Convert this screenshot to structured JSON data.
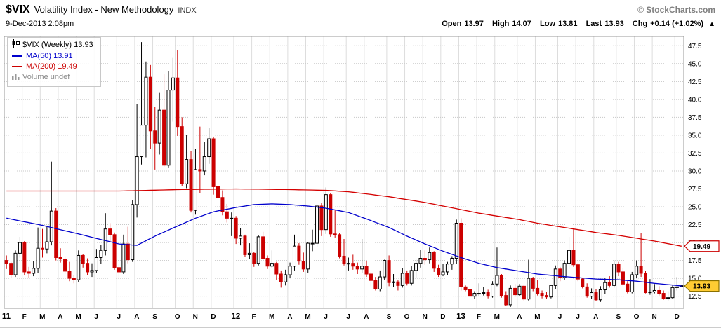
{
  "header": {
    "symbol": "$VIX",
    "name": "Volatility Index - New Methodology",
    "exchange": "INDX",
    "credit": "© StockCharts.com",
    "datetime": "9-Dec-2013 2:08pm",
    "quote": {
      "open_label": "Open",
      "open": "13.97",
      "high_label": "High",
      "high": "14.07",
      "low_label": "Low",
      "low": "13.81",
      "last_label": "Last",
      "last": "13.93",
      "chg_label": "Chg",
      "chg": "+0.14 (+1.02%)",
      "direction_icon": "▲"
    }
  },
  "legend": {
    "series": "$VIX (Weekly) 13.93",
    "ma50": "MA(50) 13.91",
    "ma200": "MA(200) 19.49",
    "volume": "Volume undef"
  },
  "chart_data": {
    "type": "candlestick",
    "title": "$VIX Volatility Index - New Methodology INDX",
    "timeframe": "Weekly",
    "x_range": "Jan 2011 - Dec 2013",
    "ylim": [
      10.8,
      48.8
    ],
    "grid": true,
    "legend_position": "top-left",
    "colors": {
      "up": "#000000",
      "down": "#cc0000",
      "ma50": "#0000cc",
      "ma200": "#d40000",
      "grid_h": "#c8c8c8",
      "grid_v": "#dddddd",
      "border": "#999999",
      "axis_text": "#000000",
      "last_marker": "#ffcc33"
    },
    "y_ticks": [
      {
        "v": 47.5,
        "label": "47.5"
      },
      {
        "v": 45.0,
        "label": "45.0"
      },
      {
        "v": 42.5,
        "label": "42.5"
      },
      {
        "v": 40.0,
        "label": "40.0"
      },
      {
        "v": 37.5,
        "label": "37.5"
      },
      {
        "v": 35.0,
        "label": "35.0"
      },
      {
        "v": 32.5,
        "label": "32.5"
      },
      {
        "v": 30.0,
        "label": "30.0"
      },
      {
        "v": 27.5,
        "label": "27.5"
      },
      {
        "v": 25.0,
        "label": "25.0"
      },
      {
        "v": 22.5,
        "label": "22.5"
      },
      {
        "v": 20.0,
        "label": "20.0"
      },
      {
        "v": 17.5,
        "label": "17.5"
      },
      {
        "v": 15.0,
        "label": "15.0"
      },
      {
        "v": 12.5,
        "label": "12.5"
      }
    ],
    "x_ticks": [
      {
        "pos": 0,
        "label": "11",
        "year": true
      },
      {
        "pos": 4,
        "label": "F"
      },
      {
        "pos": 8,
        "label": "M"
      },
      {
        "pos": 12,
        "label": "A"
      },
      {
        "pos": 16,
        "label": "M"
      },
      {
        "pos": 20,
        "label": "J"
      },
      {
        "pos": 25,
        "label": "J"
      },
      {
        "pos": 29,
        "label": "A"
      },
      {
        "pos": 33,
        "label": "S"
      },
      {
        "pos": 38,
        "label": "O"
      },
      {
        "pos": 42,
        "label": "N"
      },
      {
        "pos": 46,
        "label": "D"
      },
      {
        "pos": 51,
        "label": "12",
        "year": true
      },
      {
        "pos": 55,
        "label": "F"
      },
      {
        "pos": 59,
        "label": "M"
      },
      {
        "pos": 63,
        "label": "A"
      },
      {
        "pos": 67,
        "label": "M"
      },
      {
        "pos": 71,
        "label": "J"
      },
      {
        "pos": 76,
        "label": "J"
      },
      {
        "pos": 80,
        "label": "A"
      },
      {
        "pos": 85,
        "label": "S"
      },
      {
        "pos": 89,
        "label": "O"
      },
      {
        "pos": 93,
        "label": "N"
      },
      {
        "pos": 97,
        "label": "D"
      },
      {
        "pos": 101,
        "label": "13",
        "year": true
      },
      {
        "pos": 105,
        "label": "F"
      },
      {
        "pos": 109,
        "label": "M"
      },
      {
        "pos": 114,
        "label": "A"
      },
      {
        "pos": 118,
        "label": "M"
      },
      {
        "pos": 123,
        "label": "J"
      },
      {
        "pos": 127,
        "label": "J"
      },
      {
        "pos": 131,
        "label": "A"
      },
      {
        "pos": 136,
        "label": "S"
      },
      {
        "pos": 140,
        "label": "O"
      },
      {
        "pos": 144,
        "label": "N"
      },
      {
        "pos": 149,
        "label": "D"
      }
    ],
    "candles_ohlc": [
      [
        17.5,
        18.2,
        16.3,
        17.1
      ],
      [
        17.1,
        17.3,
        15.0,
        15.5
      ],
      [
        15.5,
        18.9,
        15.2,
        18.5
      ],
      [
        18.5,
        20.8,
        17.9,
        20.0
      ],
      [
        20.0,
        20.2,
        15.5,
        15.9
      ],
      [
        15.9,
        16.6,
        15.1,
        15.7
      ],
      [
        15.7,
        17.4,
        15.3,
        16.4
      ],
      [
        16.4,
        22.1,
        15.7,
        19.2
      ],
      [
        19.2,
        21.9,
        17.9,
        19.1
      ],
      [
        19.1,
        22.2,
        18.5,
        20.1
      ],
      [
        20.1,
        31.3,
        19.6,
        24.4
      ],
      [
        24.4,
        24.8,
        17.5,
        17.9
      ],
      [
        17.9,
        19.2,
        17.2,
        17.7
      ],
      [
        17.7,
        18.1,
        15.6,
        16.0
      ],
      [
        16.0,
        17.3,
        14.6,
        15.0
      ],
      [
        15.0,
        15.4,
        14.3,
        14.8
      ],
      [
        14.8,
        18.9,
        14.5,
        18.2
      ],
      [
        18.2,
        18.4,
        16.5,
        17.1
      ],
      [
        17.1,
        17.8,
        15.5,
        15.9
      ],
      [
        15.9,
        17.1,
        15.2,
        16.1
      ],
      [
        16.1,
        19.1,
        15.8,
        17.9
      ],
      [
        17.9,
        19.7,
        17.0,
        18.9
      ],
      [
        18.9,
        24.1,
        18.2,
        21.9
      ],
      [
        21.9,
        22.7,
        20.1,
        21.1
      ],
      [
        21.1,
        21.4,
        16.2,
        16.5
      ],
      [
        16.5,
        17.0,
        15.1,
        15.9
      ],
      [
        15.9,
        21.1,
        15.6,
        19.8
      ],
      [
        19.8,
        22.2,
        17.1,
        17.6
      ],
      [
        17.6,
        25.9,
        17.3,
        25.3
      ],
      [
        25.3,
        39.3,
        23.5,
        32.0
      ],
      [
        32.0,
        48.0,
        30.9,
        36.4
      ],
      [
        36.4,
        45.3,
        31.9,
        43.1
      ],
      [
        43.1,
        44.8,
        33.1,
        35.6
      ],
      [
        35.6,
        39.0,
        30.2,
        33.9
      ],
      [
        33.9,
        41.0,
        32.3,
        38.5
      ],
      [
        38.5,
        43.5,
        30.6,
        30.8
      ],
      [
        30.8,
        44.0,
        30.5,
        41.3
      ],
      [
        41.3,
        45.8,
        36.9,
        43.0
      ],
      [
        43.0,
        46.9,
        34.9,
        36.2
      ],
      [
        36.2,
        37.5,
        27.9,
        28.2
      ],
      [
        28.2,
        35.0,
        27.6,
        31.6
      ],
      [
        31.6,
        32.8,
        24.2,
        24.5
      ],
      [
        24.5,
        33.1,
        23.9,
        30.2
      ],
      [
        30.2,
        36.2,
        26.9,
        30.0
      ],
      [
        30.0,
        34.1,
        29.4,
        32.0
      ],
      [
        32.0,
        36.0,
        31.0,
        34.5
      ],
      [
        34.5,
        34.8,
        26.7,
        27.8
      ],
      [
        27.8,
        29.1,
        25.4,
        26.3
      ],
      [
        26.3,
        27.3,
        23.8,
        24.3
      ],
      [
        24.3,
        25.4,
        22.8,
        23.4
      ],
      [
        23.4,
        24.2,
        20.9,
        23.4
      ],
      [
        23.4,
        23.7,
        19.8,
        20.6
      ],
      [
        20.6,
        22.0,
        19.6,
        20.9
      ],
      [
        20.9,
        21.1,
        18.0,
        18.3
      ],
      [
        18.3,
        19.9,
        17.7,
        18.5
      ],
      [
        18.5,
        18.7,
        16.6,
        17.1
      ],
      [
        17.1,
        21.0,
        16.8,
        20.8
      ],
      [
        20.8,
        21.5,
        17.6,
        17.8
      ],
      [
        17.8,
        18.2,
        16.3,
        16.7
      ],
      [
        16.7,
        18.9,
        16.4,
        17.1
      ],
      [
        17.1,
        17.3,
        14.8,
        15.6
      ],
      [
        15.6,
        16.1,
        13.7,
        14.5
      ],
      [
        14.5,
        16.2,
        14.0,
        15.5
      ],
      [
        15.5,
        17.2,
        15.0,
        16.7
      ],
      [
        16.7,
        21.1,
        16.1,
        19.5
      ],
      [
        19.5,
        19.9,
        16.9,
        17.4
      ],
      [
        17.4,
        18.6,
        15.9,
        16.3
      ],
      [
        16.3,
        20.1,
        15.8,
        19.9
      ],
      [
        19.9,
        21.8,
        18.8,
        19.9
      ],
      [
        19.9,
        25.2,
        19.3,
        25.1
      ],
      [
        25.1,
        25.5,
        20.9,
        21.8
      ],
      [
        21.8,
        27.7,
        21.2,
        26.7
      ],
      [
        26.7,
        26.9,
        20.8,
        21.2
      ],
      [
        21.2,
        24.5,
        20.7,
        21.1
      ],
      [
        21.1,
        21.3,
        17.8,
        18.1
      ],
      [
        18.1,
        20.5,
        16.8,
        17.1
      ],
      [
        17.1,
        17.9,
        16.1,
        17.1
      ],
      [
        17.1,
        18.3,
        16.2,
        16.7
      ],
      [
        16.7,
        17.2,
        15.6,
        16.3
      ],
      [
        16.3,
        20.5,
        15.7,
        16.7
      ],
      [
        16.7,
        17.4,
        15.2,
        15.6
      ],
      [
        15.6,
        15.9,
        13.9,
        14.7
      ],
      [
        14.7,
        15.2,
        13.3,
        13.5
      ],
      [
        13.5,
        16.1,
        13.2,
        15.2
      ],
      [
        15.2,
        17.6,
        14.8,
        17.5
      ],
      [
        17.5,
        18.2,
        13.9,
        14.4
      ],
      [
        14.4,
        15.6,
        13.8,
        14.5
      ],
      [
        14.5,
        14.8,
        13.3,
        14.0
      ],
      [
        14.0,
        16.4,
        13.7,
        15.7
      ],
      [
        15.7,
        16.1,
        14.0,
        14.3
      ],
      [
        14.3,
        16.7,
        14.0,
        16.1
      ],
      [
        16.1,
        17.6,
        15.1,
        17.1
      ],
      [
        17.1,
        19.0,
        16.5,
        17.8
      ],
      [
        17.8,
        18.9,
        16.9,
        17.6
      ],
      [
        17.6,
        19.3,
        17.1,
        18.6
      ],
      [
        18.6,
        18.8,
        15.9,
        16.4
      ],
      [
        16.4,
        16.9,
        15.2,
        15.5
      ],
      [
        15.5,
        17.0,
        15.3,
        15.9
      ],
      [
        15.9,
        17.3,
        15.5,
        17.0
      ],
      [
        17.0,
        18.1,
        16.2,
        17.8
      ],
      [
        17.8,
        23.2,
        17.0,
        22.7
      ],
      [
        22.7,
        23.4,
        13.3,
        13.8
      ],
      [
        13.8,
        14.0,
        13.2,
        13.4
      ],
      [
        13.4,
        13.6,
        12.3,
        12.5
      ],
      [
        12.5,
        13.2,
        12.1,
        12.9
      ],
      [
        12.9,
        14.3,
        12.5,
        12.9
      ],
      [
        12.9,
        13.8,
        12.6,
        13.0
      ],
      [
        13.0,
        13.4,
        12.2,
        12.5
      ],
      [
        12.5,
        14.6,
        12.3,
        14.2
      ],
      [
        14.2,
        19.3,
        13.9,
        15.4
      ],
      [
        15.4,
        15.6,
        12.3,
        12.6
      ],
      [
        12.6,
        13.2,
        11.1,
        11.3
      ],
      [
        11.3,
        14.0,
        11.0,
        13.6
      ],
      [
        13.6,
        14.2,
        12.4,
        12.7
      ],
      [
        12.7,
        14.2,
        12.5,
        13.9
      ],
      [
        13.9,
        14.1,
        11.8,
        12.1
      ],
      [
        12.1,
        17.6,
        11.9,
        15.0
      ],
      [
        15.0,
        15.2,
        13.2,
        13.6
      ],
      [
        13.6,
        14.8,
        12.6,
        12.9
      ],
      [
        12.9,
        13.3,
        12.2,
        12.6
      ],
      [
        12.6,
        13.1,
        12.1,
        12.4
      ],
      [
        12.4,
        14.1,
        12.2,
        14.0
      ],
      [
        14.0,
        16.8,
        13.5,
        16.3
      ],
      [
        16.3,
        16.6,
        14.6,
        15.1
      ],
      [
        15.1,
        17.5,
        14.8,
        17.1
      ],
      [
        17.1,
        20.8,
        16.3,
        18.9
      ],
      [
        18.9,
        21.9,
        16.6,
        16.9
      ],
      [
        16.9,
        17.1,
        14.6,
        14.9
      ],
      [
        14.9,
        15.1,
        13.6,
        13.8
      ],
      [
        13.8,
        14.3,
        12.3,
        12.5
      ],
      [
        12.5,
        13.6,
        12.1,
        13.0
      ],
      [
        13.0,
        13.5,
        11.8,
        12.0
      ],
      [
        12.0,
        13.9,
        11.7,
        13.4
      ],
      [
        13.4,
        15.0,
        12.8,
        14.4
      ],
      [
        14.4,
        15.3,
        13.7,
        14.0
      ],
      [
        14.0,
        17.5,
        13.7,
        17.0
      ],
      [
        17.0,
        17.3,
        15.3,
        15.9
      ],
      [
        15.9,
        16.4,
        13.9,
        14.2
      ],
      [
        14.2,
        14.6,
        12.9,
        13.1
      ],
      [
        13.1,
        15.9,
        12.9,
        15.5
      ],
      [
        15.5,
        17.5,
        15.1,
        16.7
      ],
      [
        16.7,
        21.3,
        15.2,
        15.7
      ],
      [
        15.7,
        16.0,
        12.9,
        13.0
      ],
      [
        13.0,
        14.9,
        12.7,
        13.1
      ],
      [
        13.1,
        14.2,
        12.9,
        13.3
      ],
      [
        13.3,
        13.9,
        12.6,
        12.9
      ],
      [
        12.9,
        13.3,
        12.0,
        12.2
      ],
      [
        12.2,
        13.2,
        11.9,
        12.3
      ],
      [
        12.3,
        14.0,
        12.1,
        13.7
      ],
      [
        13.7,
        15.2,
        13.3,
        13.8
      ],
      [
        13.97,
        14.07,
        13.81,
        13.93
      ]
    ],
    "overlays": [
      {
        "name": "MA(200)",
        "data_name": "ma200-line",
        "color": "#d40000",
        "last": 19.49,
        "points": [
          [
            0,
            27.2
          ],
          [
            25,
            27.2
          ],
          [
            38,
            27.4
          ],
          [
            51,
            27.5
          ],
          [
            63,
            27.4
          ],
          [
            71,
            27.3
          ],
          [
            76,
            27.1
          ],
          [
            80,
            26.8
          ],
          [
            85,
            26.4
          ],
          [
            89,
            26.0
          ],
          [
            93,
            25.6
          ],
          [
            97,
            25.1
          ],
          [
            101,
            24.6
          ],
          [
            105,
            24.1
          ],
          [
            109,
            23.7
          ],
          [
            114,
            23.2
          ],
          [
            118,
            22.7
          ],
          [
            123,
            22.2
          ],
          [
            127,
            21.8
          ],
          [
            131,
            21.4
          ],
          [
            136,
            21.0
          ],
          [
            140,
            20.6
          ],
          [
            144,
            20.2
          ],
          [
            149,
            19.6
          ],
          [
            150,
            19.49
          ]
        ]
      },
      {
        "name": "MA(50)",
        "data_name": "ma50-line",
        "color": "#0000cc",
        "last": 13.91,
        "points": [
          [
            0,
            23.4
          ],
          [
            8,
            22.4
          ],
          [
            16,
            21.2
          ],
          [
            25,
            19.8
          ],
          [
            29,
            19.6
          ],
          [
            33,
            20.9
          ],
          [
            38,
            22.3
          ],
          [
            42,
            23.4
          ],
          [
            46,
            24.3
          ],
          [
            51,
            24.9
          ],
          [
            55,
            25.3
          ],
          [
            59,
            25.4
          ],
          [
            63,
            25.3
          ],
          [
            67,
            25.1
          ],
          [
            71,
            24.8
          ],
          [
            76,
            24.2
          ],
          [
            80,
            23.3
          ],
          [
            85,
            22.1
          ],
          [
            89,
            20.9
          ],
          [
            93,
            19.8
          ],
          [
            97,
            18.8
          ],
          [
            101,
            17.9
          ],
          [
            105,
            17.1
          ],
          [
            109,
            16.5
          ],
          [
            114,
            16.0
          ],
          [
            118,
            15.6
          ],
          [
            123,
            15.3
          ],
          [
            127,
            15.1
          ],
          [
            131,
            14.9
          ],
          [
            136,
            14.8
          ],
          [
            140,
            14.6
          ],
          [
            144,
            14.3
          ],
          [
            149,
            14.0
          ],
          [
            150,
            13.91
          ]
        ]
      }
    ],
    "price_tags": [
      {
        "value": "19.49",
        "price": 19.49,
        "fill": "#ffffff",
        "stroke": "#cc0000",
        "text_color": "#000000",
        "data_name": "ma200-price-tag"
      },
      {
        "value": "13.93",
        "price": 13.93,
        "fill": "#ffcc33",
        "stroke": "#8a7000",
        "text_color": "#000000",
        "data_name": "last-price-tag"
      }
    ],
    "last_close_marker": 13.93
  }
}
